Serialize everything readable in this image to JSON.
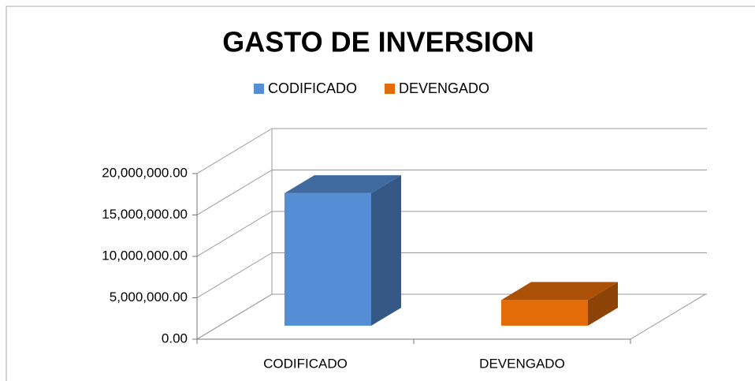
{
  "chart_data": {
    "type": "bar3d",
    "title": "GASTO DE INVERSION",
    "categories": [
      "CODIFICADO",
      "DEVENGADO"
    ],
    "series": [
      {
        "name": "CODIFICADO",
        "color": "#558ed5",
        "values": [
          16000000,
          null
        ]
      },
      {
        "name": "DEVENGADO",
        "color": "#e36c09",
        "values": [
          null,
          3100000
        ]
      }
    ],
    "ylim": [
      0,
      20000000
    ],
    "yticks": [
      {
        "value": 0,
        "label": "0.00"
      },
      {
        "value": 5000000,
        "label": "5,000,000.00"
      },
      {
        "value": 10000000,
        "label": "10,000,000.00"
      },
      {
        "value": 15000000,
        "label": "15,000,000.00"
      },
      {
        "value": 20000000,
        "label": "20,000,000.00"
      }
    ],
    "grid": true,
    "legend": "top"
  }
}
